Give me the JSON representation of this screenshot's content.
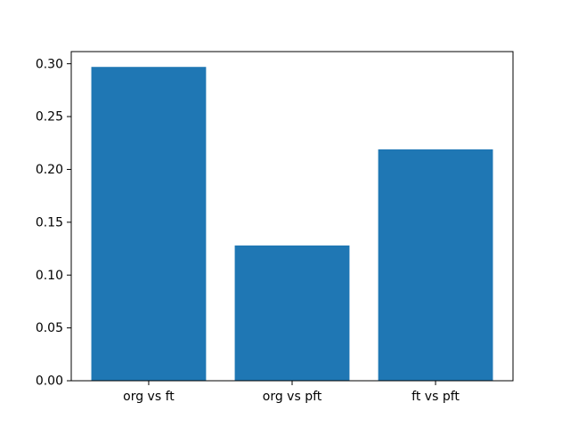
{
  "figure": {
    "background": "#ffffff",
    "axes_background": "#ffffff",
    "spine_color": "#000000",
    "text_color": "#000000"
  },
  "chart_data": {
    "type": "bar",
    "categories": [
      "org vs ft",
      "org vs pft",
      "ft vs pft"
    ],
    "values": [
      0.297,
      0.128,
      0.219
    ],
    "title": "",
    "xlabel": "",
    "ylabel": "",
    "ylim": [
      0,
      0.3115
    ],
    "ytick_values": [
      0.0,
      0.05,
      0.1,
      0.15,
      0.2,
      0.25,
      0.3
    ],
    "ytick_labels": [
      "0.00",
      "0.05",
      "0.10",
      "0.15",
      "0.20",
      "0.25",
      "0.30"
    ],
    "bar_color": "#1f77b4",
    "bar_width_fraction": 0.8,
    "grid": false,
    "legend": null
  }
}
